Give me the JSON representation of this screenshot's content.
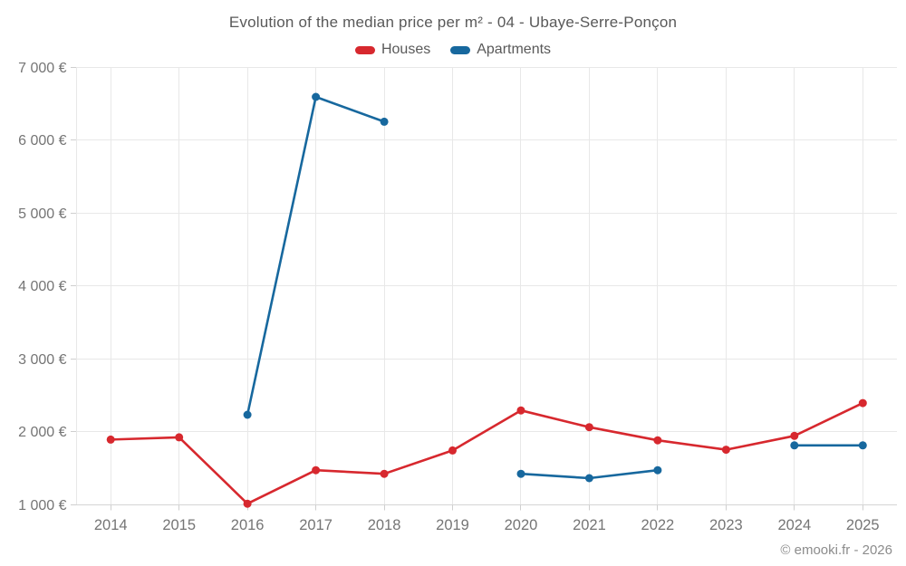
{
  "footer": {
    "credit": "© emooki.fr - 2026"
  },
  "chart_data": {
    "type": "line",
    "title": "Evolution of the median price per m² - 04 - Ubaye-Serre-Ponçon",
    "categories": [
      "2014",
      "2015",
      "2016",
      "2017",
      "2018",
      "2019",
      "2020",
      "2021",
      "2022",
      "2023",
      "2024",
      "2025"
    ],
    "series": [
      {
        "name": "Houses",
        "color": "#d7282e",
        "values": [
          1890,
          1920,
          1010,
          1470,
          1420,
          1740,
          2290,
          2060,
          1880,
          1750,
          1940,
          2390
        ]
      },
      {
        "name": "Apartments",
        "color": "#17689e",
        "values": [
          null,
          null,
          2230,
          6590,
          6250,
          null,
          1420,
          1360,
          1470,
          null,
          1810,
          1810
        ]
      }
    ],
    "ylim": [
      1000,
      7000
    ],
    "y_ticks": [
      {
        "value": 1000,
        "label": "1 000 €"
      },
      {
        "value": 2000,
        "label": "2 000 €"
      },
      {
        "value": 3000,
        "label": "3 000 €"
      },
      {
        "value": 4000,
        "label": "4 000 €"
      },
      {
        "value": 5000,
        "label": "5 000 €"
      },
      {
        "value": 6000,
        "label": "6 000 €"
      },
      {
        "value": 7000,
        "label": "7 000 €"
      }
    ],
    "grid": true,
    "legend_position": "top",
    "marker_radius": 4.5,
    "line_width": 2.6,
    "colors": {
      "grid": "#e8e8e8",
      "axis_line": "#d4d4d4",
      "tick_mark": "#cfcfcf",
      "tick_text": "#757575",
      "title_text": "#595959"
    }
  }
}
